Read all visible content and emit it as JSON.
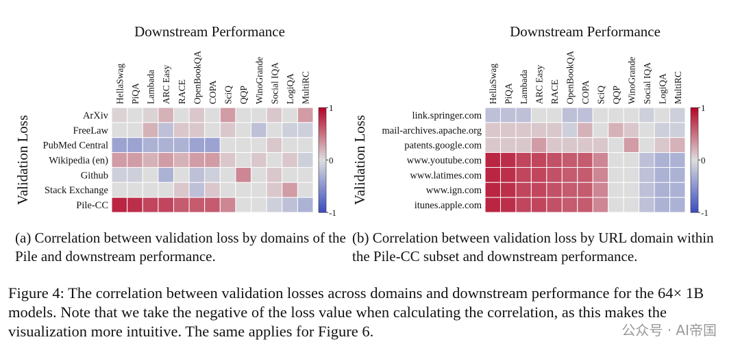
{
  "chart_data": [
    {
      "type": "heatmap",
      "title": "Downstream Performance",
      "ylabel": "Validation Loss",
      "colormap": "coolwarm",
      "categories": [
        "HellaSwag",
        "PiQA",
        "Lambada",
        "ARC Easy",
        "RACE",
        "OpenBookQA",
        "COPA",
        "SciQ",
        "QQP",
        "WinoGrande",
        "Social IQA",
        "LogiQA",
        "MultiRC"
      ],
      "rows": [
        "ArXiv",
        "FreeLaw",
        "PubMed Central",
        "Wikipedia (en)",
        "Github",
        "Stack Exchange",
        "Pile-CC"
      ],
      "values": [
        [
          0.05,
          0.0,
          0.05,
          0.2,
          0.0,
          0.1,
          0.0,
          0.3,
          0.0,
          0.0,
          0.1,
          0.0,
          0.3
        ],
        [
          0.0,
          0.0,
          0.2,
          -0.2,
          0.1,
          0.1,
          0.0,
          0.1,
          0.0,
          -0.2,
          0.0,
          -0.1,
          -0.1
        ],
        [
          -0.4,
          -0.4,
          -0.3,
          -0.3,
          -0.3,
          -0.4,
          -0.4,
          0.0,
          0.0,
          0.0,
          0.1,
          0.0,
          0.0
        ],
        [
          0.3,
          0.3,
          0.2,
          0.3,
          0.2,
          0.3,
          0.3,
          0.1,
          0.0,
          0.1,
          0.0,
          0.1,
          -0.1
        ],
        [
          -0.1,
          -0.1,
          0.0,
          -0.3,
          0.0,
          -0.2,
          -0.1,
          0.0,
          0.4,
          0.0,
          0.1,
          0.0,
          0.0
        ],
        [
          0.0,
          0.0,
          0.0,
          0.0,
          0.1,
          -0.2,
          0.1,
          0.0,
          0.0,
          0.0,
          0.1,
          0.3,
          0.0
        ],
        [
          0.85,
          0.8,
          0.7,
          0.7,
          0.6,
          0.6,
          0.6,
          0.4,
          0.0,
          0.0,
          -0.1,
          -0.2,
          -0.3
        ]
      ],
      "clim": [
        -1,
        1
      ],
      "cticks": [
        -1,
        0,
        1
      ],
      "caption": "(a) Correlation between validation loss by domains of the Pile and downstream performance."
    },
    {
      "type": "heatmap",
      "title": "Downstream Performance",
      "ylabel": "Validation Loss",
      "colormap": "coolwarm",
      "categories": [
        "HellaSwag",
        "PiQA",
        "Lambada",
        "ARC Easy",
        "RACE",
        "OpenBookQA",
        "COPA",
        "SciQ",
        "QQP",
        "WinoGrande",
        "Social IQA",
        "LogiQA",
        "MultiRC"
      ],
      "rows": [
        "link.springer.com",
        "mail-archives.apache.org",
        "patents.google.com",
        "www.youtube.com",
        "www.latimes.com",
        "www.ign.com",
        "itunes.apple.com"
      ],
      "values": [
        [
          -0.2,
          -0.2,
          -0.2,
          0.0,
          0.0,
          -0.2,
          -0.2,
          0.0,
          0.0,
          0.0,
          -0.1,
          0.0,
          -0.1
        ],
        [
          0.1,
          0.1,
          0.1,
          0.1,
          0.1,
          -0.1,
          0.2,
          0.0,
          0.2,
          0.1,
          0.0,
          -0.1,
          -0.1
        ],
        [
          0.1,
          0.1,
          0.1,
          0.3,
          0.1,
          0.1,
          0.1,
          0.1,
          0.0,
          0.3,
          0.0,
          0.1,
          0.2
        ],
        [
          0.85,
          0.8,
          0.7,
          0.7,
          0.65,
          0.6,
          0.6,
          0.4,
          0.0,
          0.0,
          -0.2,
          -0.3,
          -0.3
        ],
        [
          0.85,
          0.8,
          0.7,
          0.7,
          0.65,
          0.6,
          0.6,
          0.4,
          0.0,
          0.0,
          -0.2,
          -0.3,
          -0.3
        ],
        [
          0.85,
          0.8,
          0.7,
          0.7,
          0.65,
          0.6,
          0.6,
          0.4,
          0.0,
          0.0,
          -0.2,
          -0.3,
          -0.3
        ],
        [
          0.85,
          0.8,
          0.7,
          0.7,
          0.65,
          0.6,
          0.6,
          0.4,
          0.0,
          0.0,
          -0.2,
          -0.3,
          -0.3
        ]
      ],
      "clim": [
        -1,
        1
      ],
      "cticks": [
        -1,
        0,
        1
      ],
      "caption": "(b) Correlation between validation loss by URL domain within the Pile-CC subset and downstream performance."
    }
  ],
  "figure_caption": "Figure 4: The correlation between validation losses across domains and downstream performance for the 64× 1B models. Note that we take the negative of the loss value when calculating the correlation, as this makes the visualization more intuitive. The same applies for Figure 6.",
  "watermark": "公众号 · AI帝国"
}
